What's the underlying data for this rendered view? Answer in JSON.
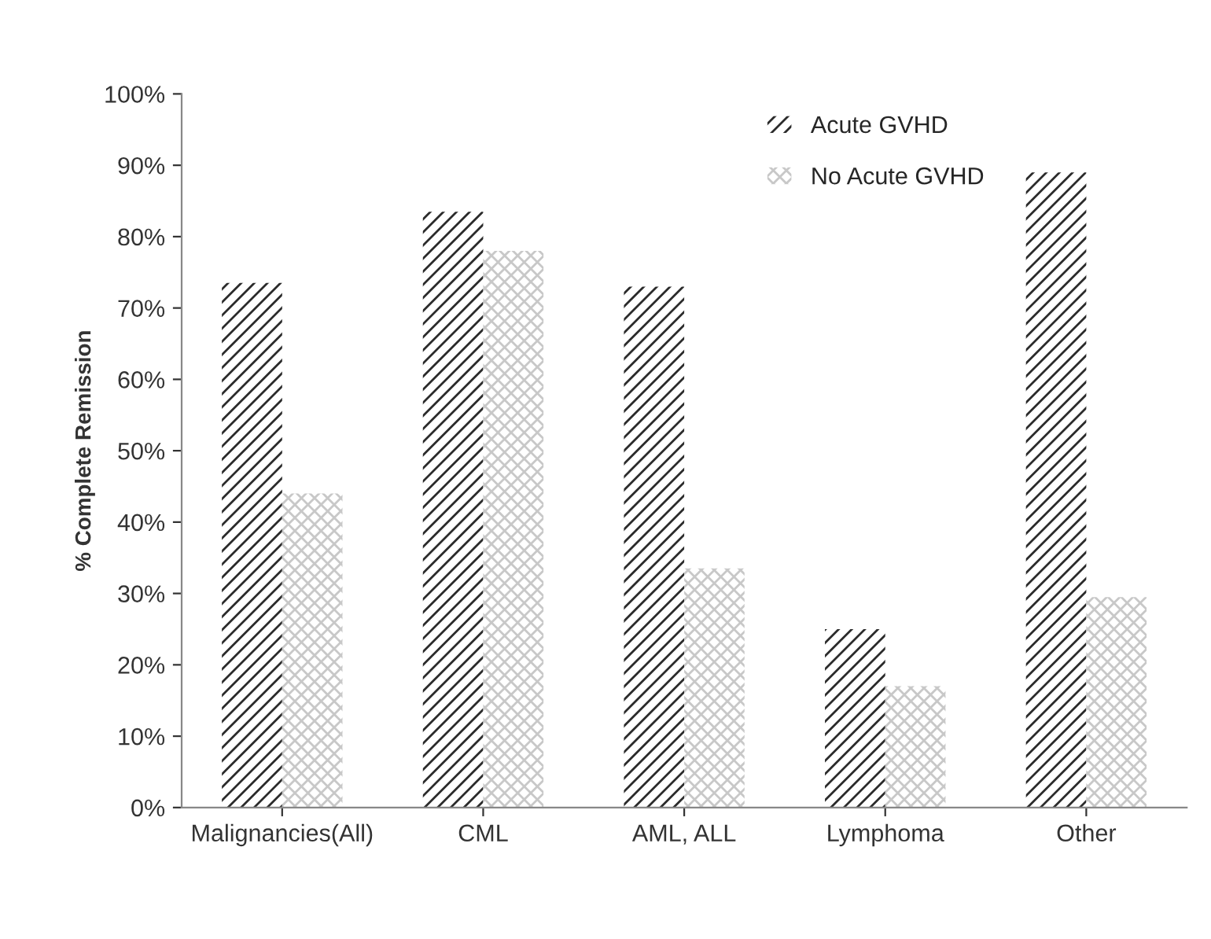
{
  "chart_data": {
    "type": "bar",
    "ylabel": "% Complete Remission",
    "categories": [
      "Malignancies(All)",
      "CML",
      "AML, ALL",
      "Lymphoma",
      "Other"
    ],
    "series": [
      {
        "name": "Acute GVHD",
        "color": "#2b2b2b",
        "values": [
          73.5,
          83.5,
          73,
          25,
          89
        ]
      },
      {
        "name": "No Acute GVHD",
        "color": "#c8c8c8",
        "values": [
          44,
          78,
          33.5,
          17,
          29.5
        ]
      }
    ],
    "ylim": [
      0,
      100
    ],
    "yticks": [
      {
        "value": 0,
        "label": "0%"
      },
      {
        "value": 10,
        "label": "10%"
      },
      {
        "value": 20,
        "label": "20%"
      },
      {
        "value": 30,
        "label": "30%"
      },
      {
        "value": 40,
        "label": "40%"
      },
      {
        "value": 50,
        "label": "50%"
      },
      {
        "value": 60,
        "label": "60%"
      },
      {
        "value": 70,
        "label": "70%"
      },
      {
        "value": 80,
        "label": "80%"
      },
      {
        "value": 90,
        "label": "90%"
      },
      {
        "value": 100,
        "label": "100%"
      }
    ],
    "grid": false,
    "legend": "top right"
  }
}
